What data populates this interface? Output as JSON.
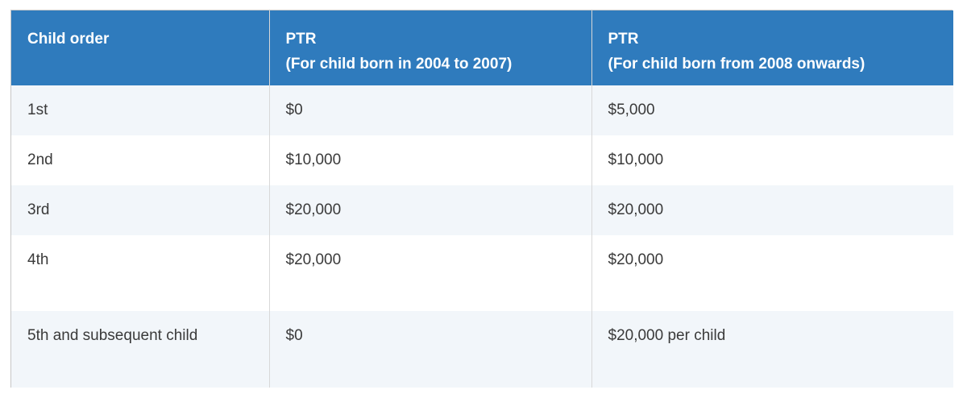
{
  "table": {
    "headers": [
      {
        "line1": "Child order",
        "line2": ""
      },
      {
        "line1": "PTR",
        "line2": "(For child born in 2004 to 2007)"
      },
      {
        "line1": "PTR",
        "line2": "(For child born from 2008 onwards)"
      }
    ],
    "rows": [
      [
        "1st",
        "$0",
        "$5,000"
      ],
      [
        "2nd",
        "$10,000",
        "$10,000"
      ],
      [
        "3rd",
        "$20,000",
        "$20,000"
      ],
      [
        "4th",
        "$20,000",
        "$20,000"
      ],
      [
        "5th and subsequent child",
        "$0",
        "$20,000 per child"
      ]
    ]
  },
  "colors": {
    "header_bg": "#2f7bbd",
    "header_text": "#ffffff",
    "stripe_bg": "#f2f6fa",
    "body_text": "#3a3a3a"
  }
}
